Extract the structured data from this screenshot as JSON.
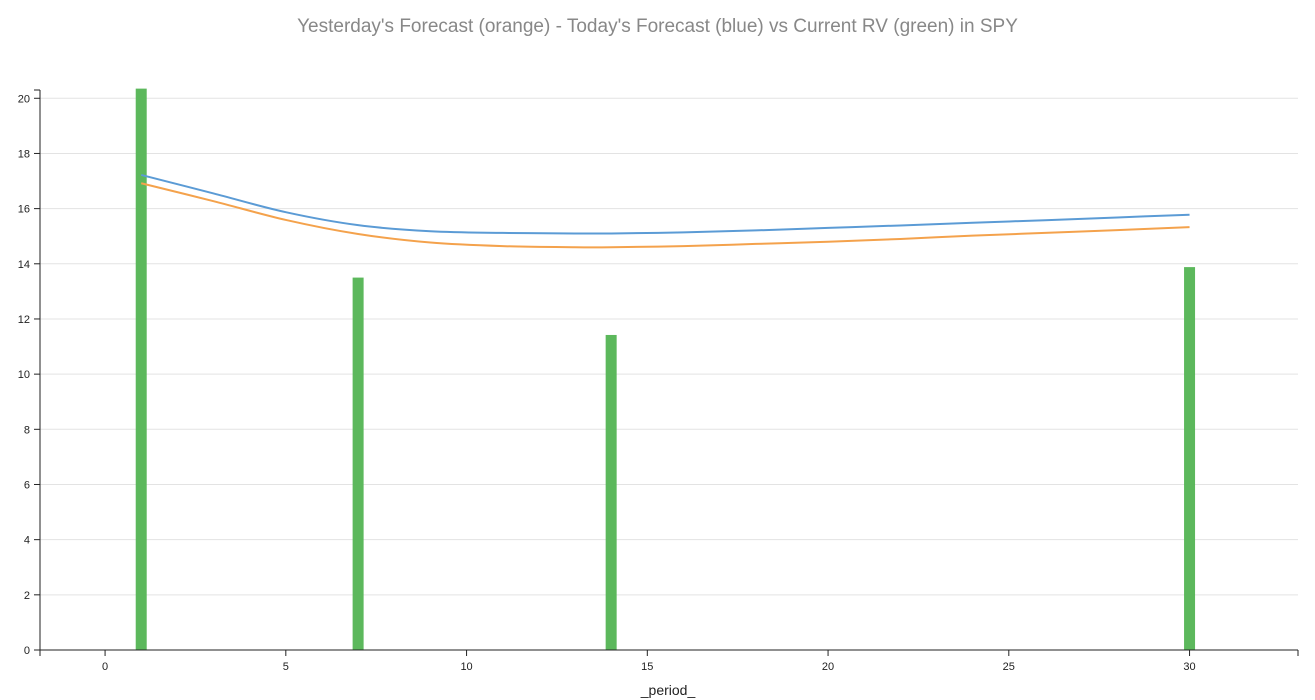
{
  "chart_data": {
    "type": "bar",
    "title": "Yesterday's Forecast (orange) - Today's Forecast (blue) vs Current RV (green) in SPY",
    "xlabel": "_period_",
    "ylabel": "",
    "xlim": [
      -1.8,
      33
    ],
    "ylim": [
      0,
      20.3
    ],
    "x_ticks": [
      0,
      5,
      10,
      15,
      20,
      25,
      30
    ],
    "y_ticks": [
      0,
      2,
      4,
      6,
      8,
      10,
      12,
      14,
      16,
      18,
      20
    ],
    "grid": "horizontal",
    "bars": {
      "x": [
        1,
        7,
        14,
        30
      ],
      "values": [
        20.35,
        13.5,
        11.42,
        13.88
      ],
      "color": "#5cb85c"
    },
    "series": [
      {
        "color": "#5b9bd5",
        "x": [
          1,
          3,
          5,
          7,
          9,
          11,
          13,
          14,
          16,
          18,
          20,
          22,
          24,
          26,
          28,
          30
        ],
        "values": [
          17.22,
          16.55,
          15.87,
          15.4,
          15.18,
          15.12,
          15.1,
          15.1,
          15.14,
          15.21,
          15.3,
          15.39,
          15.49,
          15.58,
          15.68,
          15.78
        ]
      },
      {
        "color": "#f4a24c",
        "x": [
          1,
          3,
          5,
          7,
          9,
          11,
          13,
          14,
          16,
          18,
          20,
          22,
          24,
          26,
          28,
          30
        ],
        "values": [
          16.92,
          16.27,
          15.59,
          15.08,
          14.77,
          14.64,
          14.6,
          14.6,
          14.64,
          14.72,
          14.8,
          14.9,
          15.02,
          15.12,
          15.22,
          15.33
        ]
      }
    ]
  }
}
